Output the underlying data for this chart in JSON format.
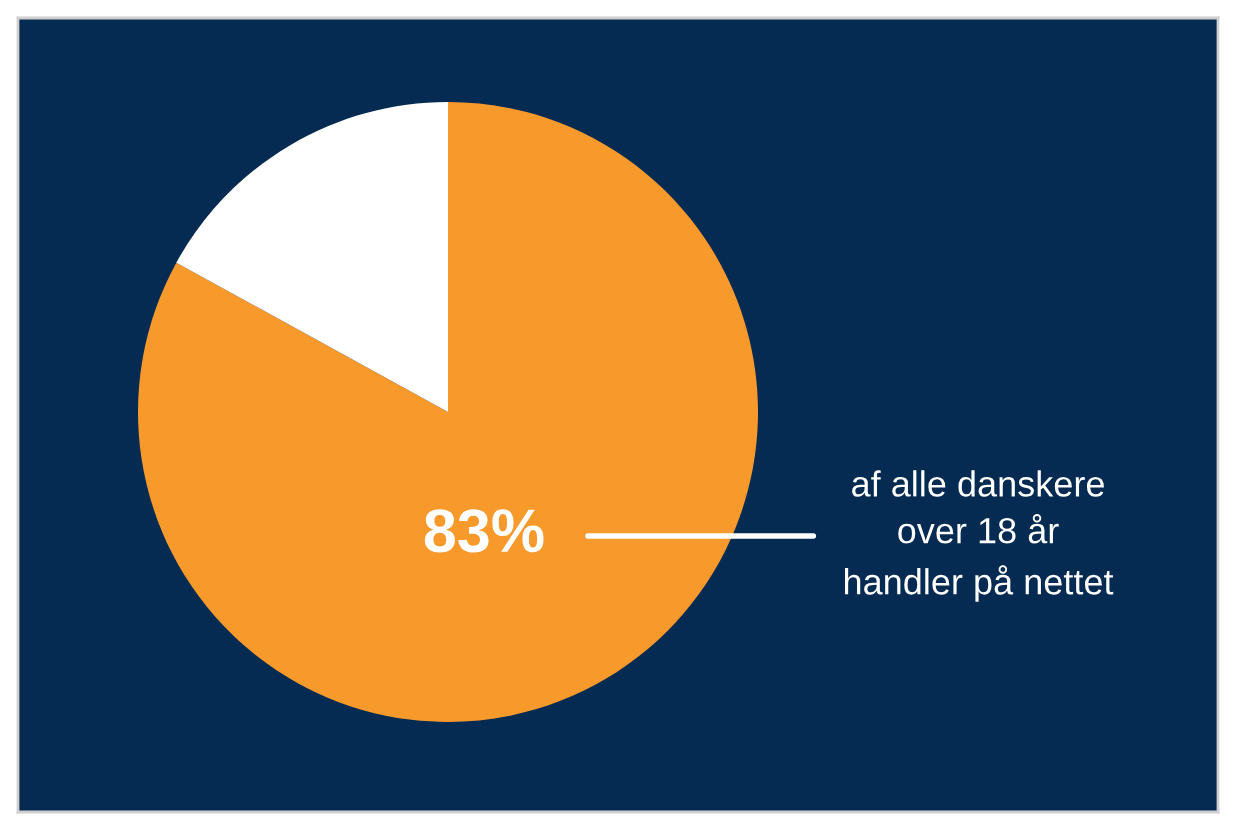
{
  "chart_data": {
    "type": "pie",
    "categories": [
      null,
      null
    ],
    "values": [
      83,
      17
    ],
    "colors": [
      "#f7992b",
      "#ffffff"
    ],
    "value_labels": [
      "83%",
      null
    ],
    "annotations": [
      "af alle danskere\nover 18 år\nhandler på nettet"
    ]
  }
}
